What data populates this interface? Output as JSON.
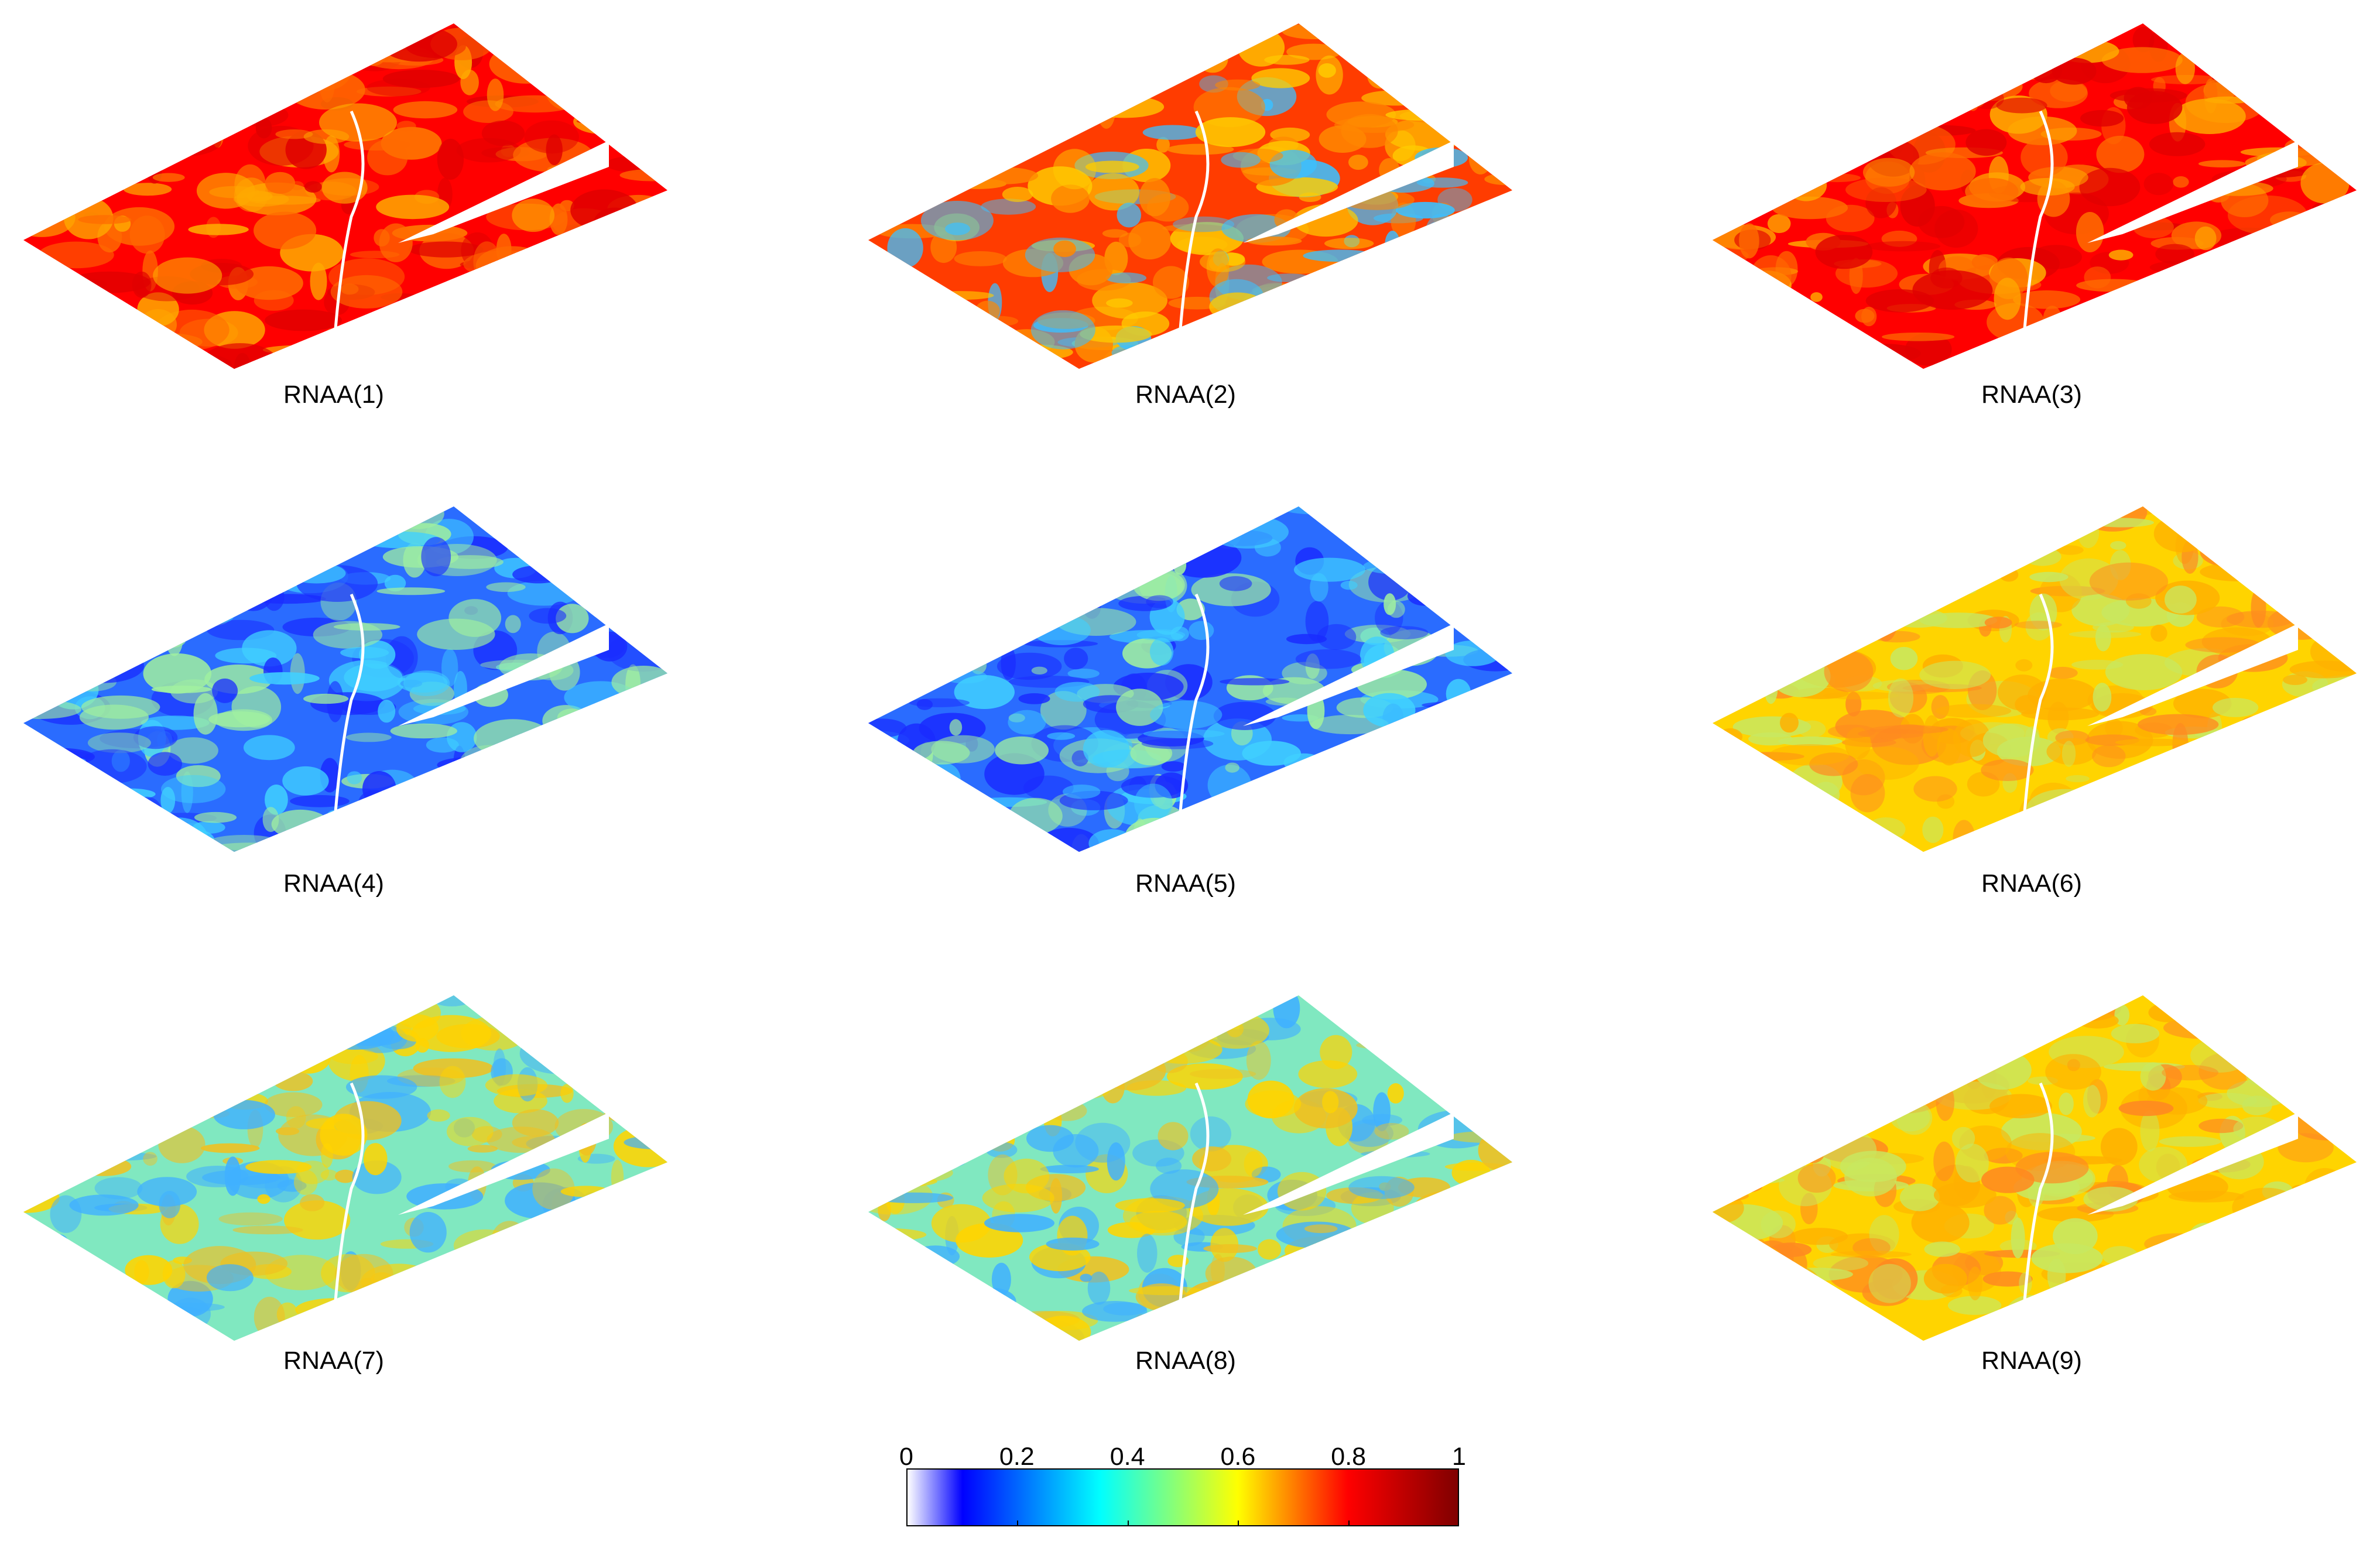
{
  "panels": [
    {
      "label": "RNAA(1)",
      "scheme": "red"
    },
    {
      "label": "RNAA(2)",
      "scheme": "mixed"
    },
    {
      "label": "RNAA(3)",
      "scheme": "red"
    },
    {
      "label": "RNAA(4)",
      "scheme": "blue"
    },
    {
      "label": "RNAA(5)",
      "scheme": "blue"
    },
    {
      "label": "RNAA(6)",
      "scheme": "yellow"
    },
    {
      "label": "RNAA(7)",
      "scheme": "cyan"
    },
    {
      "label": "RNAA(8)",
      "scheme": "cyan"
    },
    {
      "label": "RNAA(9)",
      "scheme": "yellow"
    }
  ],
  "colorbar": {
    "ticks": [
      "0",
      "0.2",
      "0.4",
      "0.6",
      "0.8",
      "1"
    ],
    "colormap": [
      "#ffffff",
      "#0000ff",
      "#00ffff",
      "#ffff00",
      "#ff0000",
      "#800000"
    ]
  },
  "schemes": {
    "red": [
      "#ff0000",
      "#ff6a00",
      "#ffaa00",
      "#e00000"
    ],
    "mixed": [
      "#ff3c00",
      "#ffcc00",
      "#3cc0ff",
      "#ff8800"
    ],
    "blue": [
      "#2a6cff",
      "#40d0ff",
      "#a0f0a0",
      "#1a2cff"
    ],
    "yellow": [
      "#ffd400",
      "#ffb000",
      "#ff8a20",
      "#c8e860"
    ],
    "cyan": [
      "#80e8c0",
      "#ffd400",
      "#40b0ff",
      "#f0c020"
    ]
  }
}
